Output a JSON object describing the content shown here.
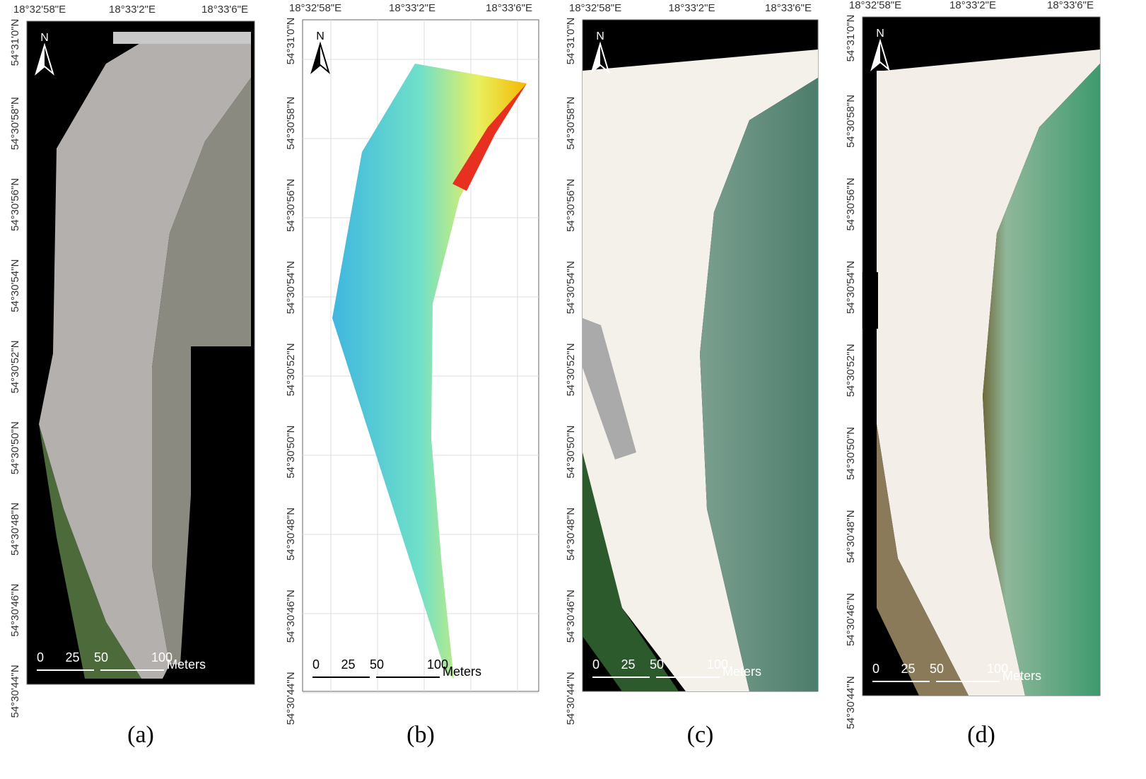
{
  "panels": [
    {
      "caption": "(a)",
      "north": "N",
      "lon_labels": [
        "18°32'58\"E",
        "18°33'2\"E",
        "18°33'6\"E"
      ],
      "lat_labels": [
        "54°31'0\"N",
        "54°30'58\"N",
        "54°30'56\"N",
        "54°30'54\"N",
        "54°30'52\"N",
        "54°30'50\"N",
        "54°30'48\"N",
        "54°30'46\"N",
        "54°30'44\"N"
      ],
      "scale_labels": [
        "0",
        "25",
        "50",
        "100"
      ],
      "scale_unit": "Meters"
    },
    {
      "caption": "(b)",
      "north": "N",
      "lon_labels": [
        "18°32'58\"E",
        "18°33'2\"E",
        "18°33'6\"E"
      ],
      "lat_labels": [
        "54°31'0\"N",
        "54°30'58\"N",
        "54°30'56\"N",
        "54°30'54\"N",
        "54°30'52\"N",
        "54°30'50\"N",
        "54°30'48\"N",
        "54°30'46\"N",
        "54°30'44\"N"
      ],
      "scale_labels": [
        "0",
        "25",
        "50",
        "100"
      ],
      "scale_unit": "Meters"
    },
    {
      "caption": "(c)",
      "north": "N",
      "lon_labels": [
        "18°32'58\"E",
        "18°33'2\"E",
        "18°33'6\"E"
      ],
      "lat_labels": [
        "54°31'0\"N",
        "54°30'58\"N",
        "54°30'56\"N",
        "54°30'54\"N",
        "54°30'52\"N",
        "54°30'50\"N",
        "54°30'48\"N",
        "54°30'46\"N",
        "54°30'44\"N"
      ],
      "scale_labels": [
        "0",
        "25",
        "50",
        "100"
      ],
      "scale_unit": "Meters"
    },
    {
      "caption": "(d)",
      "north": "N",
      "lon_labels": [
        "18°32'58\"E",
        "18°33'2\"E",
        "18°33'6\"E"
      ],
      "lat_labels": [
        "54°31'0\"N",
        "54°30'58\"N",
        "54°30'56\"N",
        "54°30'54\"N",
        "54°30'52\"N",
        "54°30'50\"N",
        "54°30'48\"N",
        "54°30'46\"N",
        "54°30'44\"N"
      ],
      "scale_labels": [
        "0",
        "25",
        "50",
        "100"
      ],
      "scale_unit": "Meters"
    }
  ]
}
